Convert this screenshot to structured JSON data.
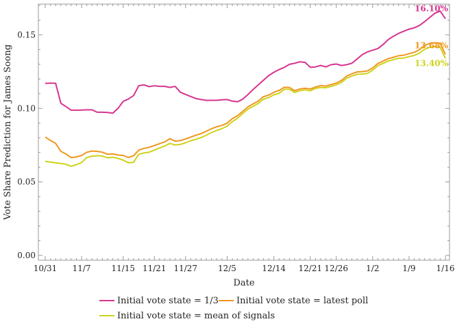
{
  "chart_data": {
    "type": "line",
    "title": "",
    "xlabel": "Date",
    "ylabel": "Vote Share Prediction for James Soong",
    "ylim": [
      0.0,
      0.17
    ],
    "y_ticks": [
      "0.00",
      "0.05",
      "0.10",
      "0.15"
    ],
    "y_tick_values": [
      0.0,
      0.05,
      0.1,
      0.15
    ],
    "x_range": [
      0,
      77
    ],
    "x_ticks": [
      {
        "label": "10/31",
        "x": 0
      },
      {
        "label": "11/7",
        "x": 7
      },
      {
        "label": "11/15",
        "x": 15
      },
      {
        "label": "11/21",
        "x": 21
      },
      {
        "label": "11/27",
        "x": 27
      },
      {
        "label": "12/5",
        "x": 35
      },
      {
        "label": "12/14",
        "x": 44
      },
      {
        "label": "12/21",
        "x": 51
      },
      {
        "label": "12/26",
        "x": 56
      },
      {
        "label": "1/2",
        "x": 63
      },
      {
        "label": "1/9",
        "x": 70
      },
      {
        "label": "1/16",
        "x": 77
      }
    ],
    "grid": false,
    "legend_position": "bottom",
    "series": [
      {
        "name": "Initial vote state = 1/3",
        "color": "#d6338f",
        "end_label": "16.10%",
        "x": [
          0,
          1,
          2,
          3,
          4,
          5,
          6,
          7,
          8,
          9,
          10,
          11,
          12,
          13,
          14,
          15,
          16,
          17,
          18,
          19,
          20,
          21,
          22,
          23,
          24,
          25,
          26,
          27,
          28,
          29,
          30,
          31,
          32,
          33,
          34,
          35,
          36,
          37,
          38,
          39,
          40,
          41,
          42,
          43,
          44,
          45,
          46,
          47,
          48,
          49,
          50,
          51,
          52,
          53,
          54,
          55,
          56,
          57,
          58,
          59,
          60,
          61,
          62,
          63,
          64,
          65,
          66,
          67,
          68,
          69,
          70,
          71,
          72,
          73,
          74,
          75,
          76,
          77
        ],
        "values": [
          0.117,
          0.1172,
          0.1171,
          0.1035,
          0.1012,
          0.0988,
          0.0988,
          0.0989,
          0.099,
          0.099,
          0.0974,
          0.0974,
          0.0972,
          0.0968,
          0.1,
          0.1048,
          0.1064,
          0.1087,
          0.1154,
          0.116,
          0.1148,
          0.1154,
          0.115,
          0.115,
          0.1143,
          0.115,
          0.111,
          0.1095,
          0.1081,
          0.1067,
          0.106,
          0.1055,
          0.1055,
          0.1055,
          0.1058,
          0.106,
          0.105,
          0.1045,
          0.1063,
          0.1094,
          0.1129,
          0.116,
          0.1192,
          0.1223,
          0.1246,
          0.1264,
          0.1279,
          0.13,
          0.1307,
          0.1317,
          0.1313,
          0.128,
          0.1282,
          0.1292,
          0.1282,
          0.1297,
          0.1302,
          0.1292,
          0.1297,
          0.1307,
          0.1336,
          0.1365,
          0.1384,
          0.1396,
          0.1407,
          0.1434,
          0.1468,
          0.1491,
          0.151,
          0.1525,
          0.1539,
          0.1548,
          0.1564,
          0.159,
          0.1619,
          0.1648,
          0.1662,
          0.161
        ]
      },
      {
        "name": "Initial vote state = latest poll",
        "color": "#f0961e",
        "end_label": "13.68%",
        "x": [
          0,
          1,
          2,
          3,
          4,
          5,
          6,
          7,
          8,
          9,
          10,
          11,
          12,
          13,
          14,
          15,
          16,
          17,
          18,
          19,
          20,
          21,
          22,
          23,
          24,
          25,
          26,
          27,
          28,
          29,
          30,
          31,
          32,
          33,
          34,
          35,
          36,
          37,
          38,
          39,
          40,
          41,
          42,
          43,
          44,
          45,
          46,
          47,
          48,
          49,
          50,
          51,
          52,
          53,
          54,
          55,
          56,
          57,
          58,
          59,
          60,
          61,
          62,
          63,
          64,
          65,
          66,
          67,
          68,
          69,
          70,
          71,
          72,
          73,
          74,
          75,
          76,
          77
        ],
        "values": [
          0.0805,
          0.0782,
          0.0762,
          0.0708,
          0.069,
          0.0665,
          0.067,
          0.068,
          0.0702,
          0.071,
          0.0708,
          0.0702,
          0.0688,
          0.069,
          0.0683,
          0.068,
          0.0666,
          0.0678,
          0.0716,
          0.0728,
          0.0735,
          0.0748,
          0.076,
          0.0772,
          0.0794,
          0.0777,
          0.0781,
          0.0792,
          0.0805,
          0.0818,
          0.0828,
          0.0845,
          0.0862,
          0.0875,
          0.0884,
          0.09,
          0.093,
          0.095,
          0.098,
          0.101,
          0.1031,
          0.105,
          0.108,
          0.109,
          0.111,
          0.1122,
          0.1144,
          0.1142,
          0.112,
          0.1132,
          0.1137,
          0.1132,
          0.1145,
          0.1155,
          0.1152,
          0.1162,
          0.1172,
          0.119,
          0.122,
          0.1235,
          0.1248,
          0.125,
          0.1255,
          0.1275,
          0.1305,
          0.1322,
          0.1338,
          0.1348,
          0.1358,
          0.1362,
          0.1372,
          0.1382,
          0.1399,
          0.1428,
          0.1442,
          0.1446,
          0.1442,
          0.1368
        ]
      },
      {
        "name": "Initial vote state = mean of signals",
        "color": "#cdd319",
        "end_label": "13.40%",
        "x": [
          0,
          1,
          2,
          3,
          4,
          5,
          6,
          7,
          8,
          9,
          10,
          11,
          12,
          13,
          14,
          15,
          16,
          17,
          18,
          19,
          20,
          21,
          22,
          23,
          24,
          25,
          26,
          27,
          28,
          29,
          30,
          31,
          32,
          33,
          34,
          35,
          36,
          37,
          38,
          39,
          40,
          41,
          42,
          43,
          44,
          45,
          46,
          47,
          48,
          49,
          50,
          51,
          52,
          53,
          54,
          55,
          56,
          57,
          58,
          59,
          60,
          61,
          62,
          63,
          64,
          65,
          66,
          67,
          68,
          69,
          70,
          71,
          72,
          73,
          74,
          75,
          76,
          77
        ],
        "values": [
          0.064,
          0.0635,
          0.063,
          0.0625,
          0.062,
          0.0606,
          0.0617,
          0.0632,
          0.0666,
          0.0675,
          0.0678,
          0.0676,
          0.0664,
          0.0668,
          0.066,
          0.0648,
          0.063,
          0.0633,
          0.0688,
          0.0697,
          0.0702,
          0.0717,
          0.0731,
          0.0744,
          0.0762,
          0.0751,
          0.0755,
          0.0766,
          0.078,
          0.079,
          0.0802,
          0.0818,
          0.0836,
          0.085,
          0.0862,
          0.088,
          0.091,
          0.0933,
          0.0966,
          0.0994,
          0.1014,
          0.1034,
          0.1063,
          0.1073,
          0.1092,
          0.1103,
          0.113,
          0.113,
          0.1108,
          0.1119,
          0.1126,
          0.1119,
          0.1136,
          0.1142,
          0.114,
          0.115,
          0.116,
          0.1177,
          0.1205,
          0.122,
          0.1232,
          0.1234,
          0.1238,
          0.126,
          0.129,
          0.1306,
          0.1322,
          0.1332,
          0.1341,
          0.1343,
          0.1352,
          0.136,
          0.1376,
          0.1402,
          0.1416,
          0.1421,
          0.1416,
          0.134
        ]
      }
    ]
  }
}
